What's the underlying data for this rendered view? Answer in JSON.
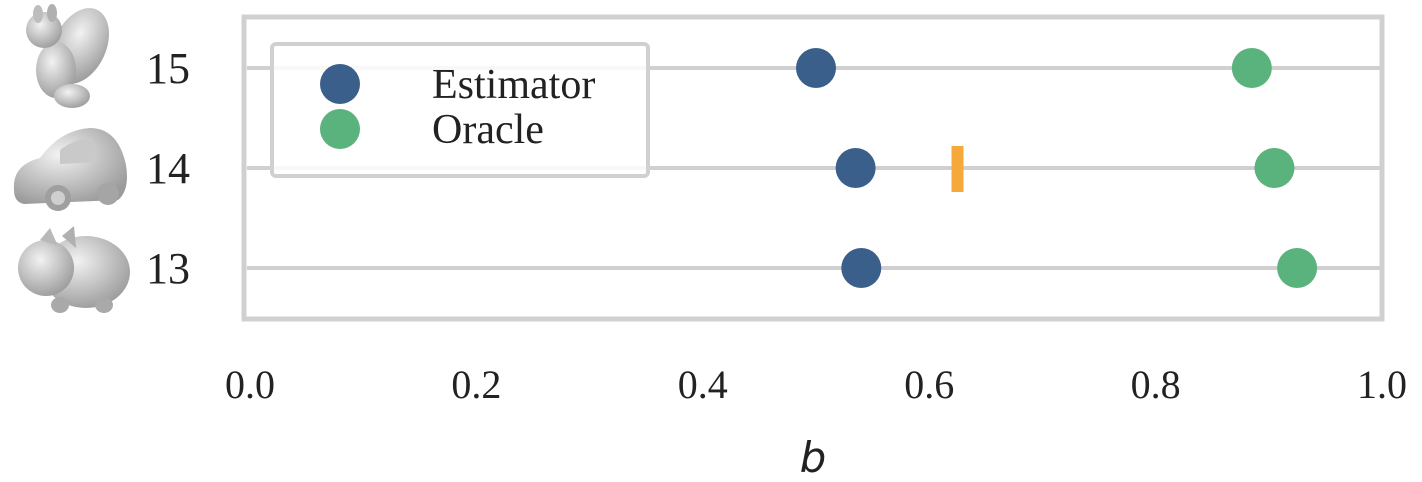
{
  "chart_data": {
    "type": "scatter",
    "categories": [
      "15",
      "14",
      "13"
    ],
    "series": [
      {
        "name": "Estimator",
        "color": "#3a5f8a",
        "values": [
          0.5,
          0.535,
          0.54
        ]
      },
      {
        "name": "Oracle",
        "color": "#5ab37c",
        "values": [
          0.885,
          0.905,
          0.925
        ]
      }
    ],
    "markers": [
      {
        "category": "14",
        "value": 0.625,
        "color": "#f5a93a"
      }
    ],
    "xlabel": "b",
    "xlim": [
      0.0,
      1.0
    ],
    "xticks": [
      "0.0",
      "0.2",
      "0.4",
      "0.6",
      "0.8",
      "1.0"
    ],
    "xtick_values": [
      0.0,
      0.2,
      0.4,
      0.6,
      0.8,
      1.0
    ],
    "grid": "horizontal",
    "legend_position": "top-left",
    "row_icons": [
      "squirrel-icon",
      "car-icon",
      "pig-icon"
    ]
  }
}
